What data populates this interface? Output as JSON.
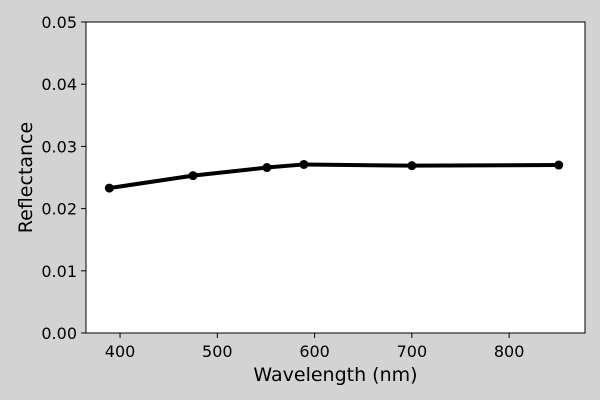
{
  "chart_data": {
    "type": "line",
    "title": "",
    "xlabel": "Wavelength (nm)",
    "ylabel": "Reflectance",
    "xlim": [
      365,
      878
    ],
    "ylim": [
      0.0,
      0.05
    ],
    "xticks": [
      400,
      500,
      600,
      700,
      800
    ],
    "xtick_labels": [
      "400",
      "500",
      "600",
      "700",
      "800"
    ],
    "yticks": [
      0.0,
      0.01,
      0.02,
      0.03,
      0.04,
      0.05
    ],
    "ytick_labels": [
      "0.00",
      "0.01",
      "0.02",
      "0.03",
      "0.04",
      "0.05"
    ],
    "grid": false,
    "legend": "none",
    "series": [
      {
        "x": [
          389,
          475,
          551,
          589,
          700,
          851
        ],
        "y": [
          0.0233,
          0.0253,
          0.0266,
          0.0271,
          0.0269,
          0.027
        ],
        "color": "#000000",
        "marker": "circle"
      }
    ]
  },
  "colors": {
    "figure_background": "#d3d3d3",
    "plot_background": "#ffffff",
    "line": "#000000"
  }
}
